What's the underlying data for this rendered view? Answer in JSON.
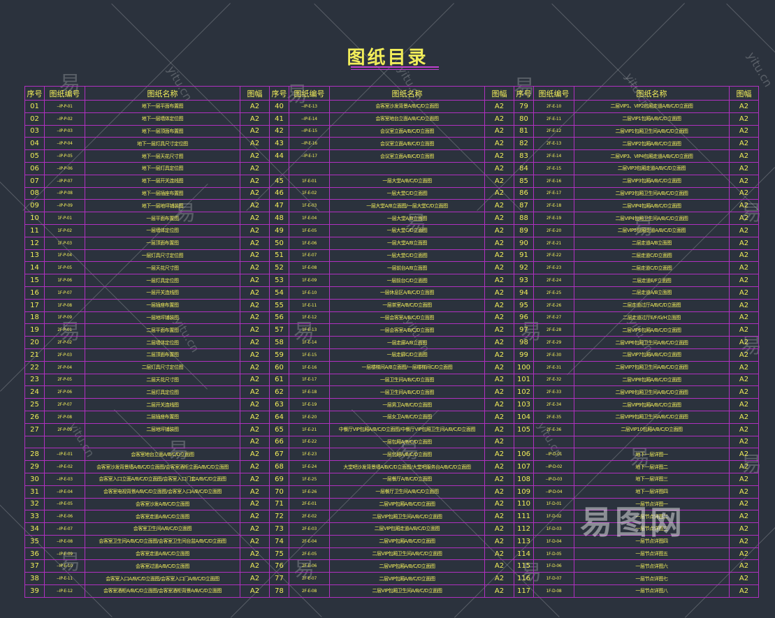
{
  "title": "图纸目录",
  "headers": {
    "seq": "序号",
    "code": "图纸编号",
    "name": "图纸名称",
    "size": "图幅"
  },
  "watermark": {
    "mark": "易",
    "site": "yitu.cn",
    "logo": "易图网"
  },
  "colors": {
    "background": "#2b323d",
    "text": "#f2ee5a",
    "grid": "#b030c0"
  },
  "rows": [
    [
      [
        "01",
        "--IP-P-01",
        "地下一层平面布置图",
        "A2"
      ],
      [
        "40",
        "--IP-E-13",
        "会客室沙发背景A/B/C/D立面图",
        "A2"
      ],
      [
        "79",
        "2F-E-10",
        "二层VIP1、VIP2包厢走道A/B/C/D立面图",
        "A2"
      ]
    ],
    [
      [
        "02",
        "--IP-P-02",
        "地下一层墙体定位图",
        "A2"
      ],
      [
        "41",
        "--IP-E-14",
        "会客室地台立面A/B/C/D立面图",
        "A2"
      ],
      [
        "80",
        "2F-E-11",
        "二层VIP1包厢A/B/C/D立面图",
        "A2"
      ]
    ],
    [
      [
        "03",
        "--IP-P-03",
        "地下一层顶面布置图",
        "A2"
      ],
      [
        "42",
        "--IP-E-15",
        "会议室立面A/B/C/D立面图",
        "A2"
      ],
      [
        "81",
        "2F-E-12",
        "二层VIP1包厢卫生间A/B/C/D立面图",
        "A2"
      ]
    ],
    [
      [
        "04",
        "--IP-P-04",
        "地下一层灯具尺寸定位图",
        "A2"
      ],
      [
        "43",
        "--IP-E-16",
        "会议室立面A/B/C/D立面图",
        "A2"
      ],
      [
        "82",
        "2F-E-13",
        "二层VIP2包厢A/B/C/D立面图",
        "A2"
      ]
    ],
    [
      [
        "05",
        "--IP-P-05",
        "地下一层天花尺寸图",
        "A2"
      ],
      [
        "44",
        "--IP-E-17",
        "会议室立面A/B/C/D立面图",
        "A2"
      ],
      [
        "83",
        "2F-E-14",
        "二层VIP3、VIP4包厢走道A/B/C/D立面图",
        "A2"
      ]
    ],
    [
      [
        "06",
        "--IP-P-06",
        "地下一层灯具定位图",
        "A2"
      ],
      [
        "",
        "",
        "",
        "A2"
      ],
      [
        "84",
        "2F-E-15",
        "二层VIP3包厢走道A/B/C/D立面图",
        "A2"
      ]
    ],
    [
      [
        "07",
        "--IP-P-07",
        "地下一层开关连线图",
        "A2"
      ],
      [
        "45",
        "1F-E-01",
        "一层大堂A/B/C/D立面图",
        "A2"
      ],
      [
        "85",
        "2F-E-16",
        "二层VIP3包厢A/B/C/D立面图",
        "A2"
      ]
    ],
    [
      [
        "08",
        "--IP-P-08",
        "地下一层插座布置图",
        "A2"
      ],
      [
        "46",
        "1F-E-02",
        "一层大堂C/D立面图",
        "A2"
      ],
      [
        "86",
        "2F-E-17",
        "二层VIP3包厢卫生间A/B/C/D立面图",
        "A2"
      ]
    ],
    [
      [
        "09",
        "--IP-P-09",
        "地下一层地坪铺装图",
        "A2"
      ],
      [
        "47",
        "1F-E-03",
        "一层大堂A/B立面图/一层大堂C/D立面图",
        "A2"
      ],
      [
        "87",
        "2F-E-18",
        "二层VIP4包厢A/B/C/D立面图",
        "A2"
      ]
    ],
    [
      [
        "10",
        "1F-P-01",
        "一层平面布置图",
        "A2"
      ],
      [
        "48",
        "1F-E-04",
        "一层大堂A/B立面图",
        "A2"
      ],
      [
        "88",
        "2F-E-19",
        "二层VIP4包厢卫生间A/B/C/D立面图",
        "A2"
      ]
    ],
    [
      [
        "11",
        "1F-P-02",
        "一层墙体定位图",
        "A2"
      ],
      [
        "49",
        "1F-E-05",
        "一层大堂C/D立面图",
        "A2"
      ],
      [
        "89",
        "2F-E-20",
        "二层VIP5包厢走道A/B/C/D立面图",
        "A2"
      ]
    ],
    [
      [
        "12",
        "1F-P-03",
        "一层顶面布置图",
        "A2"
      ],
      [
        "50",
        "1F-E-06",
        "一层大堂A/B立面图",
        "A2"
      ],
      [
        "90",
        "2F-E-21",
        "二层走道A/B立面图",
        "A2"
      ]
    ],
    [
      [
        "13",
        "1F-P-04",
        "一层灯具尺寸定位图",
        "A2"
      ],
      [
        "51",
        "1F-E-07",
        "一层大堂C/D立面图",
        "A2"
      ],
      [
        "91",
        "2F-E-22",
        "二层走道C/D立面图",
        "A2"
      ]
    ],
    [
      [
        "14",
        "1F-P-05",
        "一层天花尺寸图",
        "A2"
      ],
      [
        "52",
        "1F-E-08",
        "一层前台A/B立面图",
        "A2"
      ],
      [
        "92",
        "2F-E-23",
        "二层走道C/D立面图",
        "A2"
      ]
    ],
    [
      [
        "15",
        "1F-P-06",
        "一层灯具定位图",
        "A2"
      ],
      [
        "53",
        "1F-E-09",
        "一层前台C/D立面图",
        "A2"
      ],
      [
        "93",
        "2F-E-24",
        "二层走道E/F立面图",
        "A2"
      ]
    ],
    [
      [
        "16",
        "1F-P-07",
        "一层开关连线图",
        "A2"
      ],
      [
        "54",
        "1F-E-10",
        "一层休息区A/B/C/D立面图",
        "A2"
      ],
      [
        "94",
        "2F-E-25",
        "二层走道A/B立面图",
        "A2"
      ]
    ],
    [
      [
        "17",
        "1F-P-08",
        "一层插座布置图",
        "A2"
      ],
      [
        "55",
        "1F-E-11",
        "一层茶室A/B/C/D立面图",
        "A2"
      ],
      [
        "95",
        "2F-E-26",
        "二层走道过厅A/B/C/D立面图",
        "A2"
      ]
    ],
    [
      [
        "18",
        "1F-P-09",
        "一层地坪铺装图",
        "A2"
      ],
      [
        "56",
        "1F-E-12",
        "一层会客室A/B/C/D立面图",
        "A2"
      ],
      [
        "96",
        "2F-E-27",
        "二层走道过厅E/F/G/H立面图",
        "A2"
      ]
    ],
    [
      [
        "19",
        "2F-P-01",
        "二层平面布置图",
        "A2"
      ],
      [
        "57",
        "1F-E-13",
        "一层会客室A/B/C/D立面图",
        "A2"
      ],
      [
        "97",
        "2F-E-28",
        "二层VIP6包厢A/B/C/D立面图",
        "A2"
      ]
    ],
    [
      [
        "20",
        "2F-P-02",
        "二层墙体定位图",
        "A2"
      ],
      [
        "58",
        "1F-E-14",
        "一层走廊A/B立面图",
        "A2"
      ],
      [
        "98",
        "2F-E-29",
        "二层VIP6包厢卫生间A/B/C/D立面图",
        "A2"
      ]
    ],
    [
      [
        "21",
        "2F-P-03",
        "二层顶面布置图",
        "A2"
      ],
      [
        "59",
        "1F-E-15",
        "一层走廊C/D立面图",
        "A2"
      ],
      [
        "99",
        "2F-E-30",
        "二层VIP7包厢A/B/C/D立面图",
        "A2"
      ]
    ],
    [
      [
        "22",
        "2F-P-04",
        "二层灯具尺寸定位图",
        "A2"
      ],
      [
        "60",
        "1F-E-16",
        "一层楼梯间A/B立面图/一层楼梯间C/D立面图",
        "A2"
      ],
      [
        "100",
        "2F-E-31",
        "二层VIP7包厢卫生间A/B/C/D立面图",
        "A2"
      ]
    ],
    [
      [
        "23",
        "2F-P-05",
        "二层天花尺寸图",
        "A2"
      ],
      [
        "61",
        "1F-E-17",
        "一层卫生间A/B/C/D立面图",
        "A2"
      ],
      [
        "101",
        "2F-E-32",
        "二层VIP8包厢A/B/C/D立面图",
        "A2"
      ]
    ],
    [
      [
        "24",
        "2F-P-06",
        "二层灯具定位图",
        "A2"
      ],
      [
        "62",
        "1F-E-18",
        "一层卫生间A/B/C/D立面图",
        "A2"
      ],
      [
        "102",
        "2F-E-33",
        "二层VIP8包厢卫生间A/B/C/D立面图",
        "A2"
      ]
    ],
    [
      [
        "25",
        "2F-P-07",
        "二层开关连线图",
        "A2"
      ],
      [
        "63",
        "1F-E-19",
        "一层男卫A/B/C/D立面图",
        "A2"
      ],
      [
        "103",
        "2F-E-34",
        "二层VIP9包厢A/B/C/D立面图",
        "A2"
      ]
    ],
    [
      [
        "26",
        "2F-P-08",
        "二层插座布置图",
        "A2"
      ],
      [
        "64",
        "1F-E-20",
        "一层女卫A/B/C/D立面图",
        "A2"
      ],
      [
        "104",
        "2F-E-35",
        "二层VIP9包厢卫生间A/B/C/D立面图",
        "A2"
      ]
    ],
    [
      [
        "27",
        "2F-P-09",
        "二层地坪铺装图",
        "A2"
      ],
      [
        "65",
        "1F-E-21",
        "中餐厅VIP包厢A/B/C/D立面图/中餐厅VIP包厢卫生间A/B/C/D立面图",
        "A2"
      ],
      [
        "105",
        "2F-E-36",
        "二层VIP10包厢A/B/C/D立面图",
        "A2"
      ]
    ],
    [
      [
        "",
        "",
        "",
        "A2"
      ],
      [
        "66",
        "1F-E-22",
        "一层包厢A/B/C/D立面图",
        "A2"
      ],
      [
        "",
        "",
        "",
        "A2"
      ]
    ],
    [
      [
        "28",
        "--IP-E-01",
        "会客室地台立面A/B/C/D立面图",
        "A2"
      ],
      [
        "67",
        "1F-E-23",
        "一层包厢A/B/C/D立面图",
        "A2"
      ],
      [
        "106",
        "--IP-D-01",
        "地下一层详图一",
        "A2"
      ]
    ],
    [
      [
        "29",
        "--IP-E-02",
        "会客室沙发背景墙A/B/C/D立面图/会客室酒柜立面A/B/C/D立面图",
        "A2"
      ],
      [
        "68",
        "1F-E-24",
        "大堂吧沙发背景墙A/B/C/D立面图/大堂吧服务台A/B/C/D立面图",
        "A2"
      ],
      [
        "107",
        "--IP-D-02",
        "地下一层详图二",
        "A2"
      ]
    ],
    [
      [
        "30",
        "--IP-E-03",
        "会客室入口立面A/B/C/D立面图/会客室入口门套A/B/C/D立面图",
        "A2"
      ],
      [
        "69",
        "1F-E-25",
        "一层餐厅A/B/C/D立面图",
        "A2"
      ],
      [
        "108",
        "--IP-D-03",
        "地下一层详图三",
        "A2"
      ]
    ],
    [
      [
        "31",
        "--IP-E-04",
        "会客室电视背景A/B/C/D立面图/会客室入口A/B/C/D立面图",
        "A2"
      ],
      [
        "70",
        "1F-E-26",
        "一层餐厅卫生间A/B/C/D立面图",
        "A2"
      ],
      [
        "109",
        "--IP-D-04",
        "地下一层详图四",
        "A2"
      ]
    ],
    [
      [
        "32",
        "--IP-E-05",
        "会客室沙发A/B/C/D立面图",
        "A2"
      ],
      [
        "71",
        "2F-E-01",
        "二层VIP包厢A/B/C/D立面图",
        "A2"
      ],
      [
        "110",
        "1F-D-01",
        "一层节点详图一",
        "A2"
      ]
    ],
    [
      [
        "33",
        "--IP-E-06",
        "会客室走道A/B/C/D立面图",
        "A2"
      ],
      [
        "72",
        "2F-E-02",
        "二层VIP包厢卫生间A/B/C/D立面图",
        "A2"
      ],
      [
        "111",
        "1F-D-02",
        "一层节点详图二",
        "A2"
      ]
    ],
    [
      [
        "34",
        "--IP-E-07",
        "会客室卫生间A/B/C/D立面图",
        "A2"
      ],
      [
        "73",
        "2F-E-03",
        "二层VIP包厢走道A/B/C/D立面图",
        "A2"
      ],
      [
        "112",
        "1F-D-03",
        "一层节点详图三",
        "A2"
      ]
    ],
    [
      [
        "35",
        "--IP-E-08",
        "会客室卫生间A/B/C/D立面图/会客室卫生间台盆A/B/C/D立面图",
        "A2"
      ],
      [
        "74",
        "2F-E-04",
        "二层VIP包厢A/B/C/D立面图",
        "A2"
      ],
      [
        "113",
        "1F-D-04",
        "一层节点详图四",
        "A2"
      ]
    ],
    [
      [
        "36",
        "--IP-E-09",
        "会客室走道A/B/C/D立面图",
        "A2"
      ],
      [
        "75",
        "2F-E-05",
        "二层VIP包厢卫生间A/B/C/D立面图",
        "A2"
      ],
      [
        "114",
        "1F-D-05",
        "一层节点详图五",
        "A2"
      ]
    ],
    [
      [
        "37",
        "--IP-E-10",
        "会客室过道A/B/C/D立面图",
        "A2"
      ],
      [
        "76",
        "2F-E-06",
        "二层VIP包厢A/B/C/D立面图",
        "A2"
      ],
      [
        "115",
        "1F-D-06",
        "一层节点详图六",
        "A2"
      ]
    ],
    [
      [
        "38",
        "--IP-E-11",
        "会客室入口A/B/C/D立面图/会客室入口门A/B/C/D立面图",
        "A2"
      ],
      [
        "77",
        "2F-E-07",
        "二层VIP包厢A/B/C/D立面图",
        "A2"
      ],
      [
        "116",
        "1F-D-07",
        "一层节点详图七",
        "A2"
      ]
    ],
    [
      [
        "39",
        "--IP-E-12",
        "会客室酒柜A/B/C/D立面图/会客室酒柜背景A/B/C/D立面图",
        "A2"
      ],
      [
        "78",
        "2F-E-08",
        "二层VIP包厢卫生间A/B/C/D立面图",
        "A2"
      ],
      [
        "117",
        "1F-D-08",
        "一层节点详图八",
        "A2"
      ]
    ]
  ]
}
